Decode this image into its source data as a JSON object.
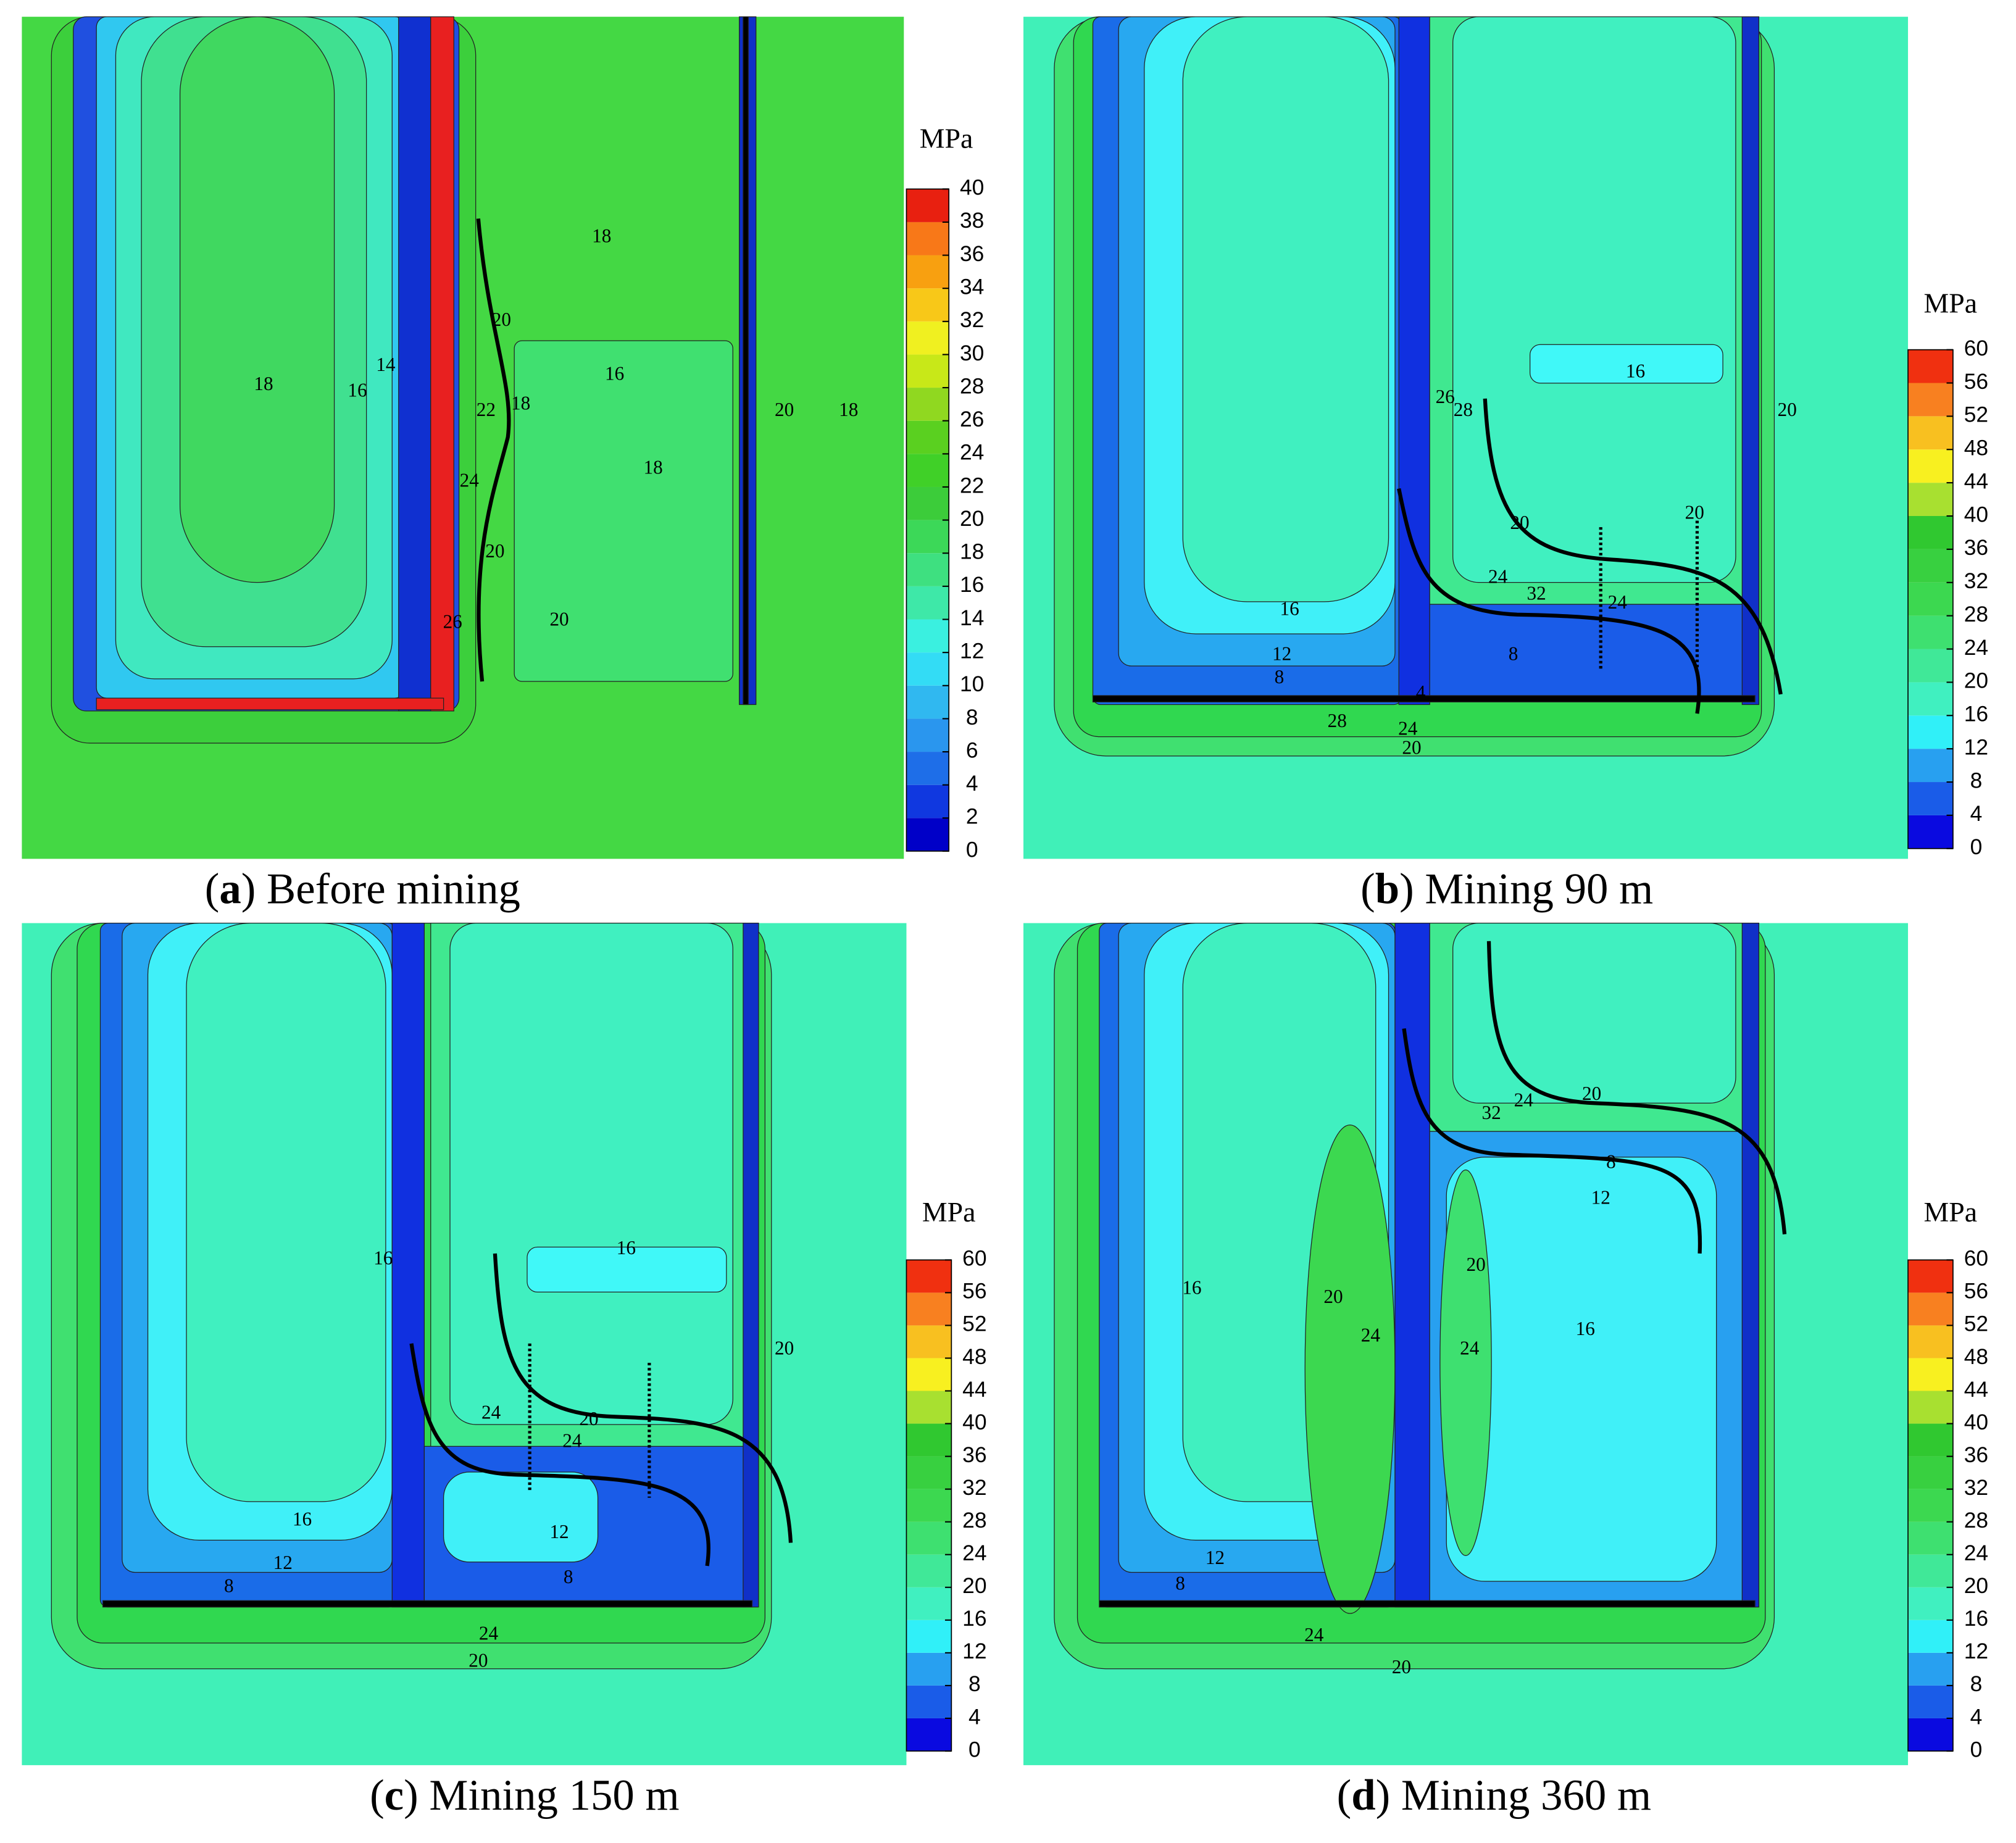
{
  "panels": [
    {
      "caption": [
        "(",
        "a",
        ") Before mining"
      ],
      "unit": "MPa",
      "ticks": [
        0,
        2,
        4,
        6,
        8,
        10,
        12,
        14,
        16,
        18,
        20,
        22,
        24,
        26,
        28,
        30,
        32,
        34,
        36,
        38,
        40
      ],
      "colors": [
        "#0000c8",
        "#1038e0",
        "#1e6ee8",
        "#2a96ee",
        "#30b8f0",
        "#33dcf5",
        "#3af0e0",
        "#3ee8a8",
        "#3ee080",
        "#3cd858",
        "#3ccc3a",
        "#40d028",
        "#5ad020",
        "#90d820",
        "#c8e818",
        "#f0f020",
        "#f8c818",
        "#f8a010",
        "#f87818",
        "#e82010"
      ],
      "contour_labels": [
        18,
        16,
        14,
        20,
        16,
        18,
        22,
        24,
        20,
        20,
        26,
        18,
        18,
        20,
        18
      ]
    },
    {
      "caption": [
        "(",
        "b",
        ") Mining 90 m"
      ],
      "unit": "MPa",
      "ticks": [
        0,
        4,
        8,
        12,
        16,
        20,
        24,
        28,
        32,
        36,
        40,
        44,
        48,
        52,
        56,
        60
      ],
      "colors": [
        "#0a0ae0",
        "#1a5ce8",
        "#28a0f0",
        "#30f0f8",
        "#40f0c0",
        "#40e898",
        "#3ee070",
        "#3cd850",
        "#38d040",
        "#30c830",
        "#a8e030",
        "#f8f020",
        "#f8c020",
        "#f88020",
        "#f03010"
      ],
      "contour_labels": [
        16,
        26,
        28,
        20,
        20,
        20,
        24,
        32,
        24,
        16,
        12,
        8,
        8,
        28,
        24,
        20,
        4
      ]
    },
    {
      "caption": [
        "(",
        "c",
        ") Mining 150 m"
      ],
      "unit": "MPa",
      "ticks": [
        0,
        4,
        8,
        12,
        16,
        20,
        24,
        28,
        32,
        36,
        40,
        44,
        48,
        52,
        56,
        60
      ],
      "colors": [
        "#0a0ae0",
        "#1a5ce8",
        "#28a0f0",
        "#30f0f8",
        "#40f0c0",
        "#40e898",
        "#3ee070",
        "#3cd850",
        "#38d040",
        "#30c830",
        "#a8e030",
        "#f8f020",
        "#f8c020",
        "#f88020",
        "#f03010"
      ],
      "contour_labels": [
        16,
        16,
        20,
        24,
        20,
        24,
        16,
        12,
        8,
        12,
        8,
        24,
        20
      ]
    },
    {
      "caption": [
        "(",
        "d",
        ") Mining 360 m"
      ],
      "unit": "MPa",
      "ticks": [
        0,
        4,
        8,
        12,
        16,
        20,
        24,
        28,
        32,
        36,
        40,
        44,
        48,
        52,
        56,
        60
      ],
      "colors": [
        "#0a0ae0",
        "#1a5ce8",
        "#28a0f0",
        "#30f0f8",
        "#40f0c0",
        "#40e898",
        "#3ee070",
        "#3cd850",
        "#38d040",
        "#30c830",
        "#a8e030",
        "#f8f020",
        "#f8c020",
        "#f88020",
        "#f03010"
      ],
      "contour_labels": [
        24,
        20,
        32,
        8,
        12,
        16,
        20,
        20,
        24,
        24,
        16,
        12,
        8,
        24,
        20
      ]
    }
  ]
}
